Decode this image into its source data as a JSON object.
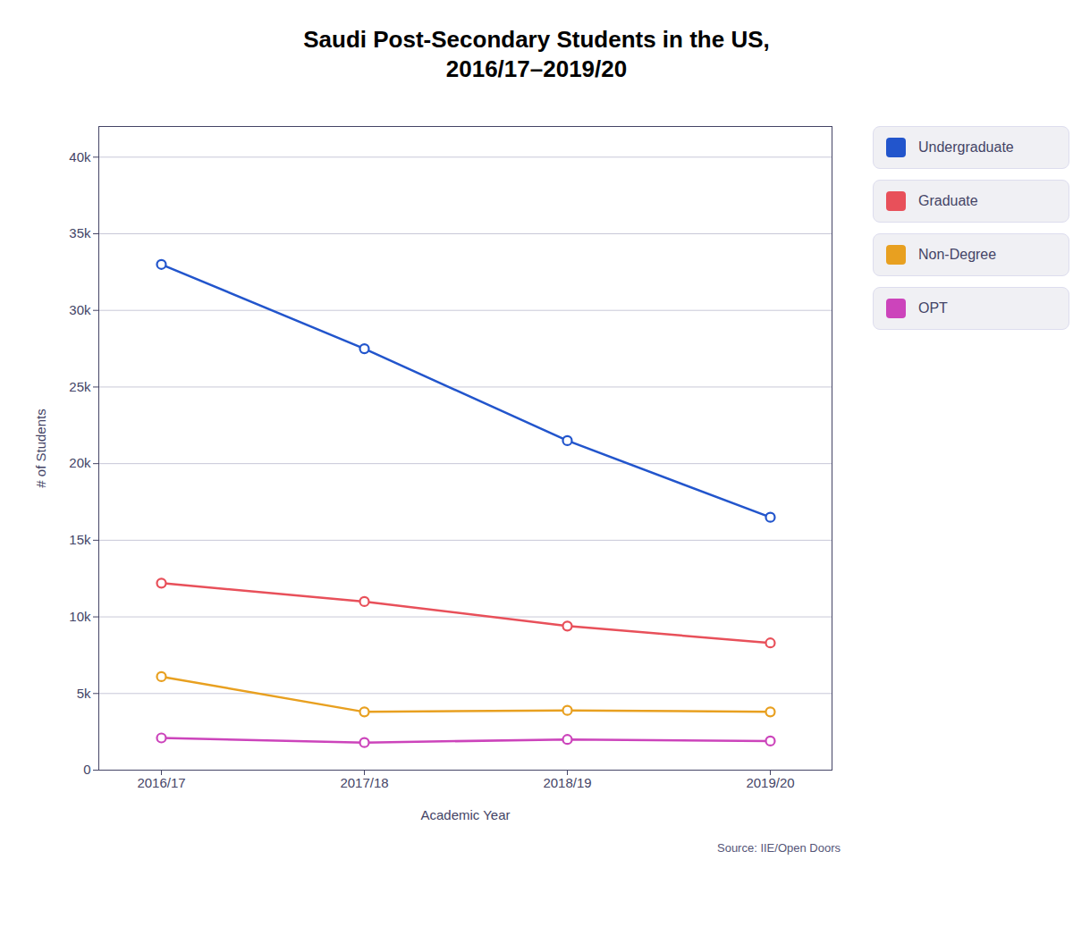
{
  "chart_data": {
    "type": "line",
    "title": "Saudi Post-Secondary Students in the US,\n2016/17–2019/20",
    "xlabel": "Academic Year",
    "ylabel": "# of Students",
    "source": "Source: IIE/Open Doors",
    "categories": [
      "2016/17",
      "2017/18",
      "2018/19",
      "2019/20"
    ],
    "series": [
      {
        "name": "Undergraduate",
        "color": "#2255cc",
        "values": [
          33000,
          27500,
          21500,
          16500
        ]
      },
      {
        "name": "Graduate",
        "color": "#e8505a",
        "values": [
          12200,
          11000,
          9400,
          8300
        ]
      },
      {
        "name": "Non-Degree",
        "color": "#e8a020",
        "values": [
          6100,
          3800,
          3900,
          3800
        ]
      },
      {
        "name": "OPT",
        "color": "#cc44bb",
        "values": [
          2100,
          1800,
          2000,
          1900
        ]
      }
    ],
    "ylim": [
      0,
      42000
    ],
    "yticks": [
      0,
      {
        "value": 5000,
        "label": "5k"
      },
      {
        "value": 10000,
        "label": "10k"
      },
      {
        "value": 15000,
        "label": "15k"
      },
      {
        "value": 20000,
        "label": "20k"
      },
      {
        "value": 25000,
        "label": "25k"
      },
      {
        "value": 30000,
        "label": "30k"
      },
      {
        "value": 35000,
        "label": "35k"
      },
      {
        "value": 40000,
        "label": "40k"
      }
    ],
    "grid": true,
    "marker": "circle",
    "legend": "upper right"
  }
}
